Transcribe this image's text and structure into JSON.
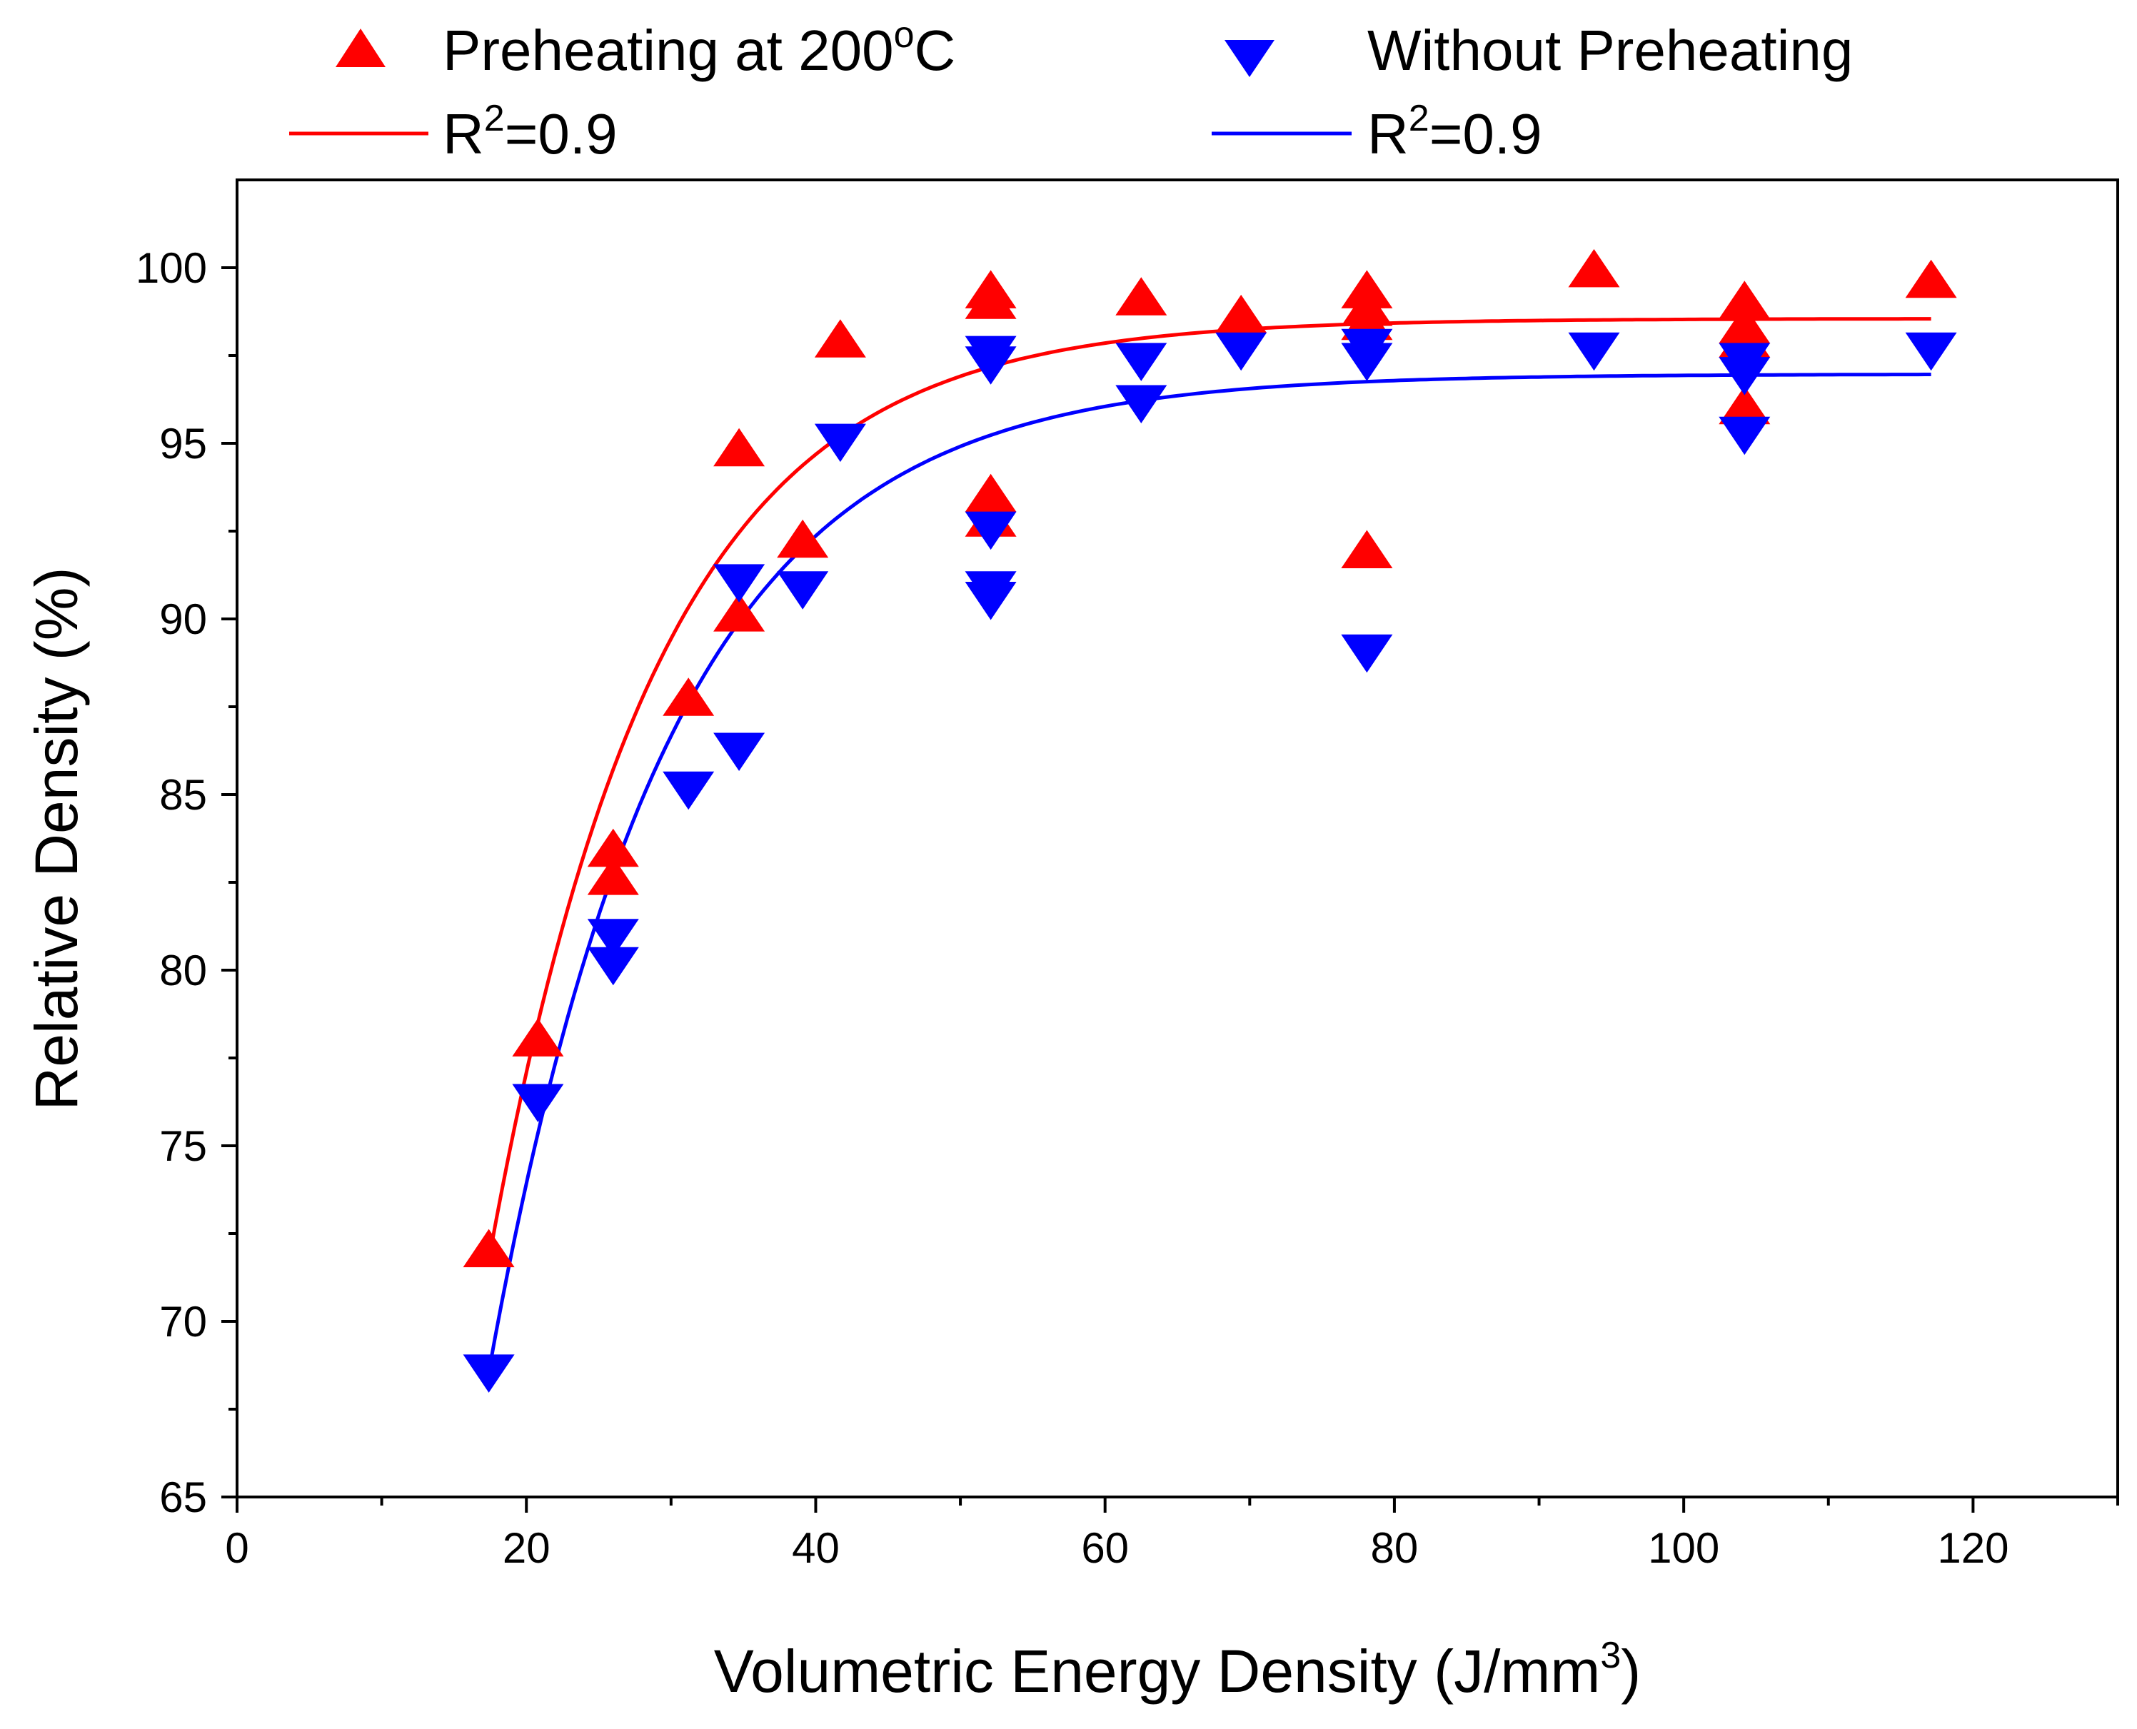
{
  "chart_data": {
    "type": "scatter",
    "title": "",
    "xlabel": "Volumetric Energy Density (J/mm",
    "xlabel_sup": "3",
    "xlabel_end": ")",
    "ylabel": "Relative Density (%)",
    "xlim": [
      0,
      130
    ],
    "ylim": [
      65,
      102.5
    ],
    "xticks": [
      0,
      20,
      40,
      60,
      80,
      100,
      120
    ],
    "yticks": [
      65,
      70,
      75,
      80,
      85,
      90,
      95,
      100
    ],
    "legend": {
      "position": "top",
      "entries": [
        {
          "label": "Preheating at 200",
          "label_sup": "o",
          "label_end": "C",
          "series": "preheat",
          "kind": "marker"
        },
        {
          "label": "Without Preheating",
          "series": "no_preheat",
          "kind": "marker"
        },
        {
          "label": "R",
          "label_sup": "2",
          "label_end": "=0.9",
          "series": "preheat",
          "kind": "line"
        },
        {
          "label": "R",
          "label_sup": "2",
          "label_end": "=0.9",
          "series": "no_preheat",
          "kind": "line"
        }
      ]
    },
    "series": [
      {
        "name": "Preheating at 200oC",
        "key": "preheat",
        "color": "#ff0000",
        "marker": "triangle-up",
        "points": [
          [
            17.4,
            72.0
          ],
          [
            20.8,
            78.0
          ],
          [
            26.0,
            83.4
          ],
          [
            26.0,
            82.6
          ],
          [
            31.2,
            87.7
          ],
          [
            34.7,
            94.8
          ],
          [
            34.7,
            90.1
          ],
          [
            39.1,
            92.2
          ],
          [
            41.7,
            97.9
          ],
          [
            52.1,
            99.3
          ],
          [
            52.1,
            99.0
          ],
          [
            52.1,
            93.5
          ],
          [
            52.1,
            92.8
          ],
          [
            62.5,
            99.1
          ],
          [
            69.4,
            98.6
          ],
          [
            78.1,
            99.3
          ],
          [
            78.1,
            98.8
          ],
          [
            78.1,
            98.4
          ],
          [
            78.1,
            91.9
          ],
          [
            93.8,
            99.9
          ],
          [
            104.2,
            99.0
          ],
          [
            104.2,
            98.3
          ],
          [
            104.2,
            97.9
          ],
          [
            104.2,
            96.0
          ],
          [
            117.1,
            99.6
          ]
        ],
        "fit": {
          "label": "R2=0.9",
          "r2": 0.9,
          "model": "y = A - B*exp(-x/t)",
          "A": 98.55,
          "B": 119.12,
          "t": 11.67,
          "x_range": [
            17.4,
            117.1
          ]
        }
      },
      {
        "name": "Without Preheating",
        "key": "no_preheat",
        "color": "#0000ff",
        "marker": "triangle-down",
        "points": [
          [
            17.4,
            68.6
          ],
          [
            20.8,
            76.3
          ],
          [
            26.0,
            81.0
          ],
          [
            26.0,
            80.2
          ],
          [
            31.2,
            85.2
          ],
          [
            34.7,
            91.1
          ],
          [
            34.7,
            86.3
          ],
          [
            39.1,
            90.9
          ],
          [
            41.7,
            95.1
          ],
          [
            52.1,
            97.6
          ],
          [
            52.1,
            97.3
          ],
          [
            52.1,
            92.6
          ],
          [
            52.1,
            90.9
          ],
          [
            52.1,
            90.6
          ],
          [
            62.5,
            97.4
          ],
          [
            62.5,
            96.2
          ],
          [
            69.4,
            97.7
          ],
          [
            78.1,
            97.8
          ],
          [
            78.1,
            97.4
          ],
          [
            78.1,
            89.1
          ],
          [
            93.8,
            97.7
          ],
          [
            104.2,
            97.4
          ],
          [
            104.2,
            97.0
          ],
          [
            104.2,
            95.3
          ],
          [
            117.1,
            97.7
          ]
        ],
        "fit": {
          "label": "R2=0.9",
          "r2": 0.9,
          "model": "y = A - B*exp(-x/t)",
          "A": 96.97,
          "B": 115.33,
          "t": 12.42,
          "x_range": [
            17.4,
            117.1
          ]
        }
      }
    ]
  }
}
